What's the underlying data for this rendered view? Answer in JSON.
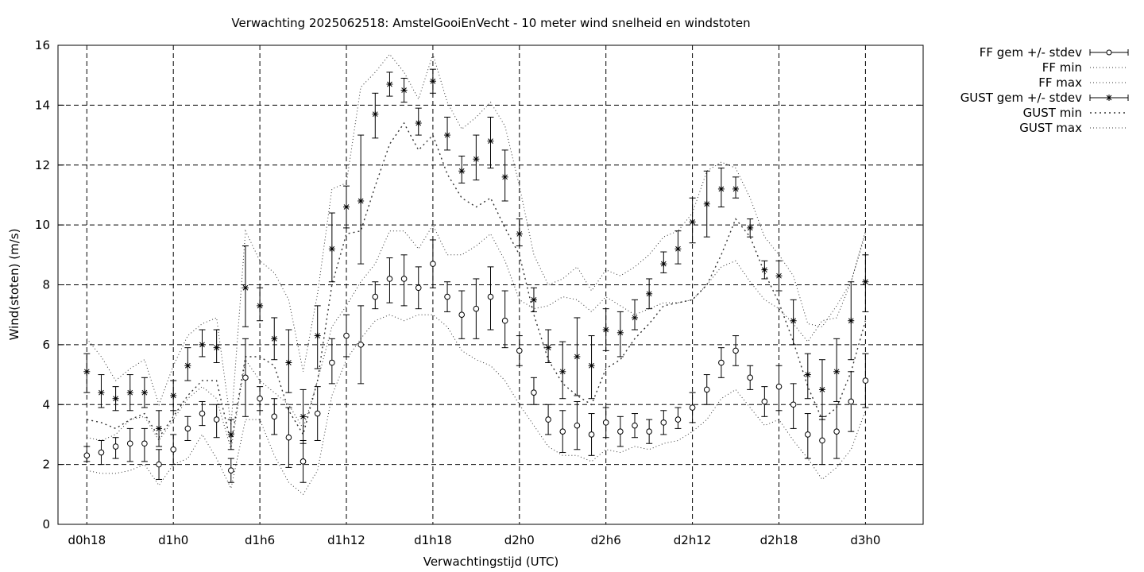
{
  "chart_data": {
    "type": "line",
    "title": "Verwachting 2025062518: AmstelGooiEnVecht - 10 meter wind snelheid en windstoten",
    "xlabel": "Verwachtingstijd (UTC)",
    "ylabel": "Wind(stoten) (m/s)",
    "ylim": [
      0,
      16
    ],
    "y_ticks": [
      "0",
      "2",
      "4",
      "6",
      "8",
      "10",
      "12",
      "14",
      "16"
    ],
    "x_ticks": [
      "d0h18",
      "d1h0",
      "d1h6",
      "d1h12",
      "d1h18",
      "d2h0",
      "d2h6",
      "d2h12",
      "d2h18",
      "d3h0"
    ],
    "x_unit": "forecast hours",
    "xlim": [
      16,
      76
    ],
    "grid": true,
    "legend_position": "outside-right",
    "x": [
      18,
      19,
      20,
      21,
      22,
      23,
      24,
      25,
      26,
      27,
      28,
      29,
      30,
      31,
      32,
      33,
      34,
      35,
      36,
      37,
      38,
      39,
      40,
      41,
      42,
      43,
      44,
      45,
      46,
      47,
      48,
      49,
      50,
      51,
      52,
      53,
      54,
      55,
      56,
      57,
      58,
      59,
      60,
      61,
      62,
      63,
      64,
      65,
      66,
      67,
      68,
      69,
      70,
      71,
      72
    ],
    "series": [
      {
        "name": "FF gem +/- stdev",
        "style": "errorbar-circle",
        "mean": [
          2.3,
          2.4,
          2.6,
          2.7,
          2.7,
          2.0,
          2.5,
          3.2,
          3.7,
          3.5,
          1.8,
          4.9,
          4.2,
          3.6,
          2.9,
          2.1,
          3.7,
          5.4,
          6.3,
          6.0,
          7.6,
          8.2,
          8.2,
          7.9,
          8.7,
          7.6,
          7.0,
          7.2,
          7.6,
          6.8,
          5.8,
          4.4,
          3.5,
          3.1,
          3.3,
          3.0,
          3.4,
          3.1,
          3.3,
          3.1,
          3.4,
          3.5,
          3.9,
          4.5,
          5.4,
          5.8,
          4.9,
          4.1,
          4.6,
          4.0,
          3.0,
          2.8,
          3.1,
          4.1,
          4.8
        ],
        "low": [
          2.1,
          2.0,
          2.2,
          2.1,
          2.1,
          1.5,
          2.0,
          2.8,
          3.3,
          2.9,
          1.4,
          3.6,
          3.8,
          3.0,
          1.9,
          1.4,
          2.8,
          4.7,
          5.6,
          4.7,
          7.2,
          7.4,
          7.3,
          7.2,
          7.9,
          7.1,
          6.2,
          6.2,
          6.5,
          5.9,
          5.3,
          4.0,
          3.0,
          2.4,
          2.5,
          2.3,
          2.9,
          2.6,
          2.9,
          2.7,
          3.0,
          3.2,
          3.4,
          4.0,
          4.9,
          5.3,
          4.5,
          3.6,
          3.8,
          3.2,
          2.2,
          2.0,
          2.2,
          3.1,
          3.9
        ],
        "high": [
          2.6,
          2.8,
          2.9,
          3.2,
          3.2,
          2.5,
          3.0,
          3.6,
          4.1,
          4.0,
          2.2,
          6.2,
          4.6,
          4.2,
          3.9,
          2.8,
          4.6,
          6.2,
          7.0,
          7.3,
          8.1,
          8.9,
          9.0,
          8.6,
          9.5,
          8.1,
          7.8,
          8.2,
          8.6,
          7.8,
          6.3,
          4.9,
          4.0,
          3.8,
          4.1,
          3.7,
          3.9,
          3.6,
          3.7,
          3.5,
          3.8,
          3.9,
          4.4,
          5.0,
          5.9,
          6.3,
          5.3,
          4.6,
          5.3,
          4.7,
          3.7,
          3.6,
          4.0,
          5.1,
          5.7
        ]
      },
      {
        "name": "FF min",
        "style": "dotted",
        "values": [
          1.8,
          1.7,
          1.7,
          1.8,
          2.0,
          1.3,
          2.0,
          2.2,
          3.0,
          2.2,
          1.2,
          3.5,
          3.5,
          2.3,
          1.4,
          1.0,
          1.8,
          4.3,
          5.5,
          6.2,
          6.8,
          7.0,
          6.8,
          7.0,
          7.0,
          6.6,
          5.8,
          5.5,
          5.3,
          4.8,
          4.0,
          3.3,
          2.6,
          2.3,
          2.3,
          2.1,
          2.5,
          2.4,
          2.6,
          2.5,
          2.7,
          2.8,
          3.1,
          3.5,
          4.2,
          4.5,
          3.9,
          3.3,
          3.5,
          2.8,
          2.2,
          1.5,
          1.9,
          2.5,
          3.8
        ]
      },
      {
        "name": "FF max",
        "style": "dotted",
        "values": [
          2.9,
          2.8,
          3.0,
          3.5,
          3.6,
          2.8,
          3.5,
          4.2,
          4.6,
          4.2,
          2.5,
          5.5,
          4.8,
          4.4,
          4.0,
          3.2,
          4.8,
          6.6,
          7.3,
          8.1,
          8.7,
          9.8,
          9.8,
          9.2,
          10.0,
          9.0,
          9.0,
          9.3,
          9.7,
          8.8,
          7.5,
          7.2,
          7.3,
          7.6,
          7.5,
          7.1,
          7.6,
          7.3,
          7.0,
          7.2,
          7.4,
          7.4,
          7.5,
          8.0,
          8.6,
          8.8,
          8.1,
          7.5,
          7.2,
          6.7,
          6.1,
          6.8,
          6.9,
          8.1,
          9.7
        ]
      },
      {
        "name": "GUST gem +/- stdev",
        "style": "errorbar-star",
        "mean": [
          5.1,
          4.4,
          4.2,
          4.4,
          4.4,
          3.2,
          4.3,
          5.3,
          6.0,
          5.9,
          3.0,
          7.9,
          7.3,
          6.2,
          5.4,
          3.6,
          6.3,
          9.2,
          10.6,
          10.8,
          13.7,
          14.7,
          14.5,
          13.4,
          14.8,
          13.0,
          11.8,
          12.2,
          12.8,
          11.6,
          9.7,
          7.5,
          5.9,
          5.1,
          5.6,
          5.3,
          6.5,
          6.4,
          6.9,
          7.7,
          8.7,
          9.2,
          10.1,
          10.7,
          11.2,
          11.2,
          9.9,
          8.5,
          8.3,
          6.8,
          5.0,
          4.5,
          5.1,
          6.8,
          8.1
        ],
        "low": [
          4.4,
          3.9,
          3.8,
          3.8,
          3.9,
          2.6,
          3.8,
          4.8,
          5.6,
          5.4,
          2.5,
          6.6,
          6.8,
          5.5,
          4.4,
          2.7,
          5.2,
          8.1,
          9.9,
          8.7,
          12.9,
          14.3,
          14.1,
          13.0,
          14.4,
          12.5,
          11.4,
          11.5,
          11.9,
          10.8,
          9.3,
          7.1,
          5.4,
          4.2,
          4.3,
          4.2,
          5.8,
          5.6,
          6.5,
          7.2,
          8.4,
          8.7,
          9.4,
          9.6,
          10.6,
          10.9,
          9.6,
          8.2,
          7.8,
          6.0,
          4.2,
          3.5,
          4.1,
          5.5,
          7.1
        ],
        "high": [
          5.7,
          5.0,
          4.6,
          5.0,
          4.9,
          3.8,
          4.8,
          5.9,
          6.5,
          6.5,
          3.5,
          9.3,
          7.9,
          6.9,
          6.5,
          4.5,
          7.3,
          10.4,
          11.3,
          13.0,
          14.4,
          15.1,
          14.9,
          13.9,
          15.2,
          13.6,
          12.3,
          13.0,
          13.6,
          12.5,
          10.2,
          7.9,
          6.5,
          6.1,
          6.9,
          6.3,
          7.2,
          7.1,
          7.5,
          8.2,
          9.1,
          9.8,
          10.9,
          11.8,
          11.9,
          11.6,
          10.2,
          8.8,
          8.8,
          7.5,
          5.7,
          5.5,
          6.2,
          8.1,
          9.0
        ]
      },
      {
        "name": "GUST min",
        "style": "dense-dotted",
        "values": [
          3.5,
          3.4,
          3.2,
          3.5,
          3.7,
          2.9,
          3.6,
          4.3,
          4.8,
          4.8,
          2.7,
          5.6,
          5.6,
          5.3,
          3.8,
          3.0,
          4.8,
          8.0,
          9.7,
          9.8,
          11.3,
          12.7,
          13.4,
          12.5,
          13.0,
          11.7,
          10.9,
          10.6,
          10.9,
          9.9,
          9.0,
          7.0,
          5.5,
          4.7,
          4.3,
          4.0,
          5.2,
          5.5,
          6.2,
          6.7,
          7.3,
          7.4,
          7.5,
          8.0,
          9.0,
          10.2,
          9.6,
          8.4,
          7.4,
          6.1,
          4.6,
          3.5,
          3.9,
          5.1,
          6.8
        ]
      },
      {
        "name": "GUST max",
        "style": "dotted",
        "values": [
          6.2,
          5.6,
          4.8,
          5.2,
          5.5,
          4.0,
          5.3,
          6.3,
          6.7,
          6.9,
          3.3,
          9.8,
          8.8,
          8.4,
          7.5,
          5.1,
          7.7,
          11.2,
          11.4,
          14.6,
          15.1,
          15.7,
          15.1,
          14.2,
          15.7,
          14.1,
          13.2,
          13.6,
          14.1,
          13.3,
          11.3,
          9.0,
          8.0,
          8.2,
          8.6,
          7.8,
          8.5,
          8.3,
          8.6,
          9.0,
          9.6,
          9.8,
          10.4,
          11.8,
          12.1,
          11.9,
          10.9,
          9.6,
          9.0,
          8.3,
          6.7,
          6.6,
          7.3,
          8.1,
          9.8
        ]
      }
    ]
  }
}
